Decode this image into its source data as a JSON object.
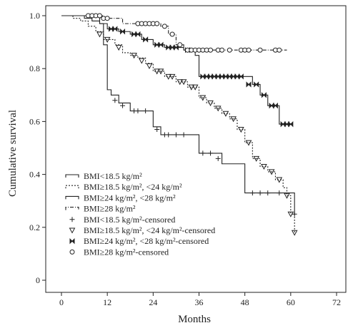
{
  "chart_data": {
    "type": "line",
    "xlabel": "Months",
    "ylabel": "Cumulative survival",
    "xlim": [
      0,
      72
    ],
    "ylim": [
      0,
      1.0
    ],
    "xticks": [
      "0",
      "12",
      "24",
      "36",
      "48",
      "60",
      "72"
    ],
    "yticks": [
      "0",
      "0.2",
      "0.4",
      "0.6",
      "0.8",
      "1.0"
    ],
    "grid": false,
    "legend_position": "lower-left",
    "series": [
      {
        "name": "BMI<18.5 kg/m²",
        "style": "solid",
        "steps": [
          [
            0,
            1.0
          ],
          [
            10,
            0.97
          ],
          [
            11,
            0.89
          ],
          [
            12,
            0.72
          ],
          [
            13,
            0.7
          ],
          [
            15,
            0.67
          ],
          [
            18,
            0.64
          ],
          [
            24,
            0.58
          ],
          [
            26,
            0.55
          ],
          [
            36,
            0.48
          ],
          [
            42,
            0.44
          ],
          [
            48,
            0.33
          ],
          [
            60,
            0.33
          ],
          [
            61,
            0.25
          ]
        ],
        "censored_marker": "plus",
        "censored_name": "BMI<18.5 kg/m²-censored",
        "censored": [
          [
            14,
            0.68
          ],
          [
            16,
            0.66
          ],
          [
            19,
            0.64
          ],
          [
            20,
            0.64
          ],
          [
            22,
            0.64
          ],
          [
            25,
            0.57
          ],
          [
            27,
            0.55
          ],
          [
            28,
            0.55
          ],
          [
            30,
            0.55
          ],
          [
            32,
            0.55
          ],
          [
            37,
            0.48
          ],
          [
            39,
            0.48
          ],
          [
            41,
            0.46
          ],
          [
            50,
            0.33
          ],
          [
            52,
            0.33
          ],
          [
            54,
            0.33
          ],
          [
            57,
            0.33
          ],
          [
            61,
            0.25
          ]
        ]
      },
      {
        "name": "BMI≥18.5 kg/m², <24 kg/m²",
        "style": "dotted",
        "steps": [
          [
            0,
            1.0
          ],
          [
            3,
            0.99
          ],
          [
            5,
            0.98
          ],
          [
            7,
            0.96
          ],
          [
            9,
            0.94
          ],
          [
            11,
            0.91
          ],
          [
            14,
            0.89
          ],
          [
            16,
            0.86
          ],
          [
            18,
            0.85
          ],
          [
            20,
            0.84
          ],
          [
            22,
            0.82
          ],
          [
            24,
            0.79
          ],
          [
            27,
            0.77
          ],
          [
            30,
            0.75
          ],
          [
            33,
            0.73
          ],
          [
            36,
            0.69
          ],
          [
            38,
            0.67
          ],
          [
            40,
            0.65
          ],
          [
            42,
            0.63
          ],
          [
            44,
            0.61
          ],
          [
            46,
            0.57
          ],
          [
            48,
            0.52
          ],
          [
            50,
            0.46
          ],
          [
            52,
            0.43
          ],
          [
            54,
            0.41
          ],
          [
            56,
            0.38
          ],
          [
            58,
            0.35
          ],
          [
            59,
            0.32
          ],
          [
            60,
            0.25
          ],
          [
            61,
            0.18
          ]
        ],
        "censored_marker": "triangle",
        "censored_name": "BMI≥18.5 kg/m², <24 kg/m²-censored",
        "censored": [
          [
            10,
            0.93
          ],
          [
            12,
            0.91
          ],
          [
            15,
            0.88
          ],
          [
            19,
            0.85
          ],
          [
            21,
            0.83
          ],
          [
            23,
            0.81
          ],
          [
            25,
            0.79
          ],
          [
            26,
            0.79
          ],
          [
            28,
            0.77
          ],
          [
            29,
            0.77
          ],
          [
            31,
            0.75
          ],
          [
            32,
            0.75
          ],
          [
            34,
            0.73
          ],
          [
            35,
            0.73
          ],
          [
            37,
            0.69
          ],
          [
            39,
            0.67
          ],
          [
            41,
            0.65
          ],
          [
            43,
            0.63
          ],
          [
            45,
            0.61
          ],
          [
            47,
            0.57
          ],
          [
            49,
            0.52
          ],
          [
            51,
            0.46
          ],
          [
            53,
            0.43
          ],
          [
            55,
            0.41
          ],
          [
            57,
            0.38
          ],
          [
            59,
            0.32
          ],
          [
            60,
            0.25
          ],
          [
            61,
            0.18
          ]
        ]
      },
      {
        "name": "BMI≥24 kg/m², <28 kg/m²",
        "style": "solid",
        "steps": [
          [
            0,
            1.0
          ],
          [
            6,
            0.99
          ],
          [
            8,
            0.98
          ],
          [
            10,
            0.97
          ],
          [
            12,
            0.95
          ],
          [
            15,
            0.94
          ],
          [
            18,
            0.93
          ],
          [
            21,
            0.91
          ],
          [
            24,
            0.89
          ],
          [
            27,
            0.88
          ],
          [
            32,
            0.87
          ],
          [
            35,
            0.85
          ],
          [
            36,
            0.77
          ],
          [
            48,
            0.77
          ],
          [
            50,
            0.74
          ],
          [
            52,
            0.7
          ],
          [
            54,
            0.66
          ],
          [
            57,
            0.59
          ],
          [
            60,
            0.59
          ]
        ],
        "censored_marker": "bowtie",
        "censored_name": "BMI≥24 kg/m², <28 kg/m²-censored",
        "censored": [
          [
            13,
            0.95
          ],
          [
            14,
            0.95
          ],
          [
            16,
            0.94
          ],
          [
            19,
            0.93
          ],
          [
            20,
            0.93
          ],
          [
            22,
            0.91
          ],
          [
            25,
            0.89
          ],
          [
            26,
            0.89
          ],
          [
            28,
            0.88
          ],
          [
            29,
            0.88
          ],
          [
            30,
            0.88
          ],
          [
            33,
            0.87
          ],
          [
            37,
            0.77
          ],
          [
            38,
            0.77
          ],
          [
            39,
            0.77
          ],
          [
            40,
            0.77
          ],
          [
            41,
            0.77
          ],
          [
            42,
            0.77
          ],
          [
            43,
            0.77
          ],
          [
            44,
            0.77
          ],
          [
            45,
            0.77
          ],
          [
            46,
            0.77
          ],
          [
            47,
            0.77
          ],
          [
            49,
            0.74
          ],
          [
            51,
            0.74
          ],
          [
            53,
            0.7
          ],
          [
            55,
            0.66
          ],
          [
            56,
            0.66
          ],
          [
            58,
            0.59
          ],
          [
            59,
            0.59
          ],
          [
            60,
            0.59
          ]
        ]
      },
      {
        "name": "BMI≥28 kg/m²",
        "style": "dashdot",
        "steps": [
          [
            0,
            1.0
          ],
          [
            11,
            0.99
          ],
          [
            16,
            0.97
          ],
          [
            26,
            0.96
          ],
          [
            28,
            0.93
          ],
          [
            30,
            0.89
          ],
          [
            32,
            0.87
          ],
          [
            59,
            0.87
          ]
        ],
        "censored_marker": "circle",
        "censored_name": "BMI≥28 kg/m²-censored",
        "censored": [
          [
            7,
            1.0
          ],
          [
            8,
            1.0
          ],
          [
            9,
            1.0
          ],
          [
            10,
            1.0
          ],
          [
            11,
            0.99
          ],
          [
            12,
            0.99
          ],
          [
            20,
            0.97
          ],
          [
            21,
            0.97
          ],
          [
            22,
            0.97
          ],
          [
            23,
            0.97
          ],
          [
            24,
            0.97
          ],
          [
            25,
            0.97
          ],
          [
            27,
            0.96
          ],
          [
            29,
            0.93
          ],
          [
            31,
            0.89
          ],
          [
            33,
            0.87
          ],
          [
            34,
            0.87
          ],
          [
            35,
            0.87
          ],
          [
            36,
            0.87
          ],
          [
            37,
            0.87
          ],
          [
            38,
            0.87
          ],
          [
            39,
            0.87
          ],
          [
            41,
            0.87
          ],
          [
            42,
            0.87
          ],
          [
            44,
            0.87
          ],
          [
            47,
            0.87
          ],
          [
            48,
            0.87
          ],
          [
            49,
            0.87
          ],
          [
            52,
            0.87
          ],
          [
            56,
            0.87
          ],
          [
            57,
            0.87
          ]
        ]
      }
    ]
  },
  "legend_entries": [
    {
      "label": "BMI<18.5 kg/m²",
      "kind": "line",
      "style": "solid"
    },
    {
      "label": "BMI≥18.5 kg/m², <24 kg/m²",
      "kind": "line",
      "style": "dotted"
    },
    {
      "label": "BMI≥24 kg/m², <28 kg/m²",
      "kind": "line",
      "style": "solid"
    },
    {
      "label": "BMI≥28 kg/m²",
      "kind": "line",
      "style": "dashdot"
    },
    {
      "label": "BMI<18.5 kg/m²-censored",
      "kind": "marker",
      "marker": "plus"
    },
    {
      "label": "BMI≥18.5 kg/m², <24 kg/m²-censored",
      "kind": "marker",
      "marker": "triangle"
    },
    {
      "label": "BMI≥24 kg/m², <28 kg/m²-censored",
      "kind": "marker",
      "marker": "bowtie"
    },
    {
      "label": "BMI≥28 kg/m²-censored",
      "kind": "marker",
      "marker": "circle"
    }
  ],
  "colors": {
    "ink": "#222222",
    "background": "#ffffff"
  }
}
